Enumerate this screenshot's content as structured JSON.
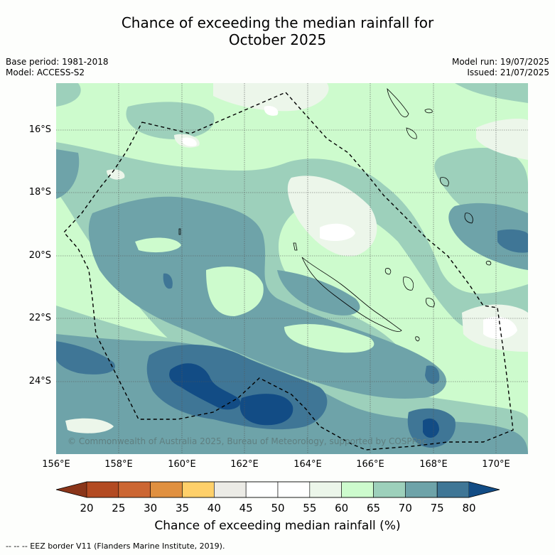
{
  "title_line1": "Chance of exceeding the median rainfall for",
  "title_line2": "October 2025",
  "base_period": "Base period: 1981-2018",
  "model": "Model: ACCESS-S2",
  "model_run": "Model run: 19/07/2025",
  "issued": "Issued: 21/07/2025",
  "copyright": "© Commonwealth of Australia 2025, Bureau of Meteorology, supported by COSPPac",
  "lat_labels": [
    "16°S",
    "18°S",
    "20°S",
    "22°S",
    "24°S"
  ],
  "lon_labels": [
    "156°E",
    "158°E",
    "160°E",
    "162°E",
    "164°E",
    "166°E",
    "168°E",
    "170°E"
  ],
  "colorbar": {
    "ticks": [
      "20",
      "25",
      "30",
      "35",
      "40",
      "45",
      "50",
      "55",
      "60",
      "65",
      "70",
      "75",
      "80"
    ],
    "colors": [
      "#b34a22",
      "#cc6633",
      "#e09040",
      "#ffd06a",
      "#ecebe6",
      "#ffffff",
      "#ffffff",
      "#ecf6ea",
      "#cdfbcd",
      "#9dd0bb",
      "#6ea3a9",
      "#3f7696"
    ],
    "low_extend_color": "#8a3519",
    "high_extend_color": "#124c85",
    "title": "Chance of exceeding median rainfall (%)"
  },
  "footer": "--  --  -- EEZ border V11 (Flanders Marine Institute, 2019)."
}
